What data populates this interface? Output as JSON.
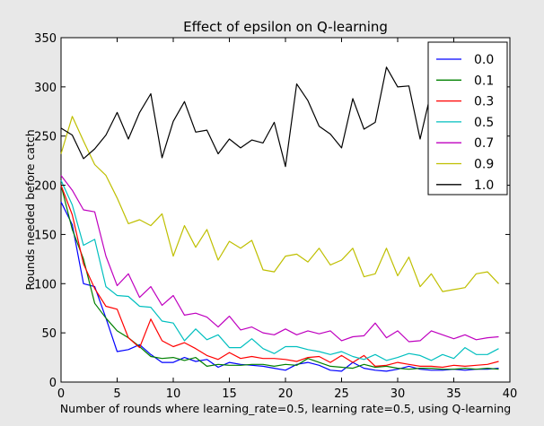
{
  "chart_data": {
    "type": "line",
    "title": "Effect of epsilon on Q-learning",
    "xlabel": "Number of rounds where learning_rate=0.5, learning rate=0.5, using Q-learning",
    "ylabel": "Rounds needed before catch",
    "xlim": [
      0,
      40
    ],
    "ylim": [
      0,
      350
    ],
    "xticks": [
      0,
      5,
      10,
      15,
      20,
      25,
      30,
      35,
      40
    ],
    "yticks": [
      0,
      50,
      100,
      150,
      200,
      250,
      300,
      350
    ],
    "grid": false,
    "legend_position": "top-right",
    "x": [
      0,
      1,
      2,
      3,
      4,
      5,
      6,
      7,
      8,
      9,
      10,
      11,
      12,
      13,
      14,
      15,
      16,
      17,
      18,
      19,
      20,
      21,
      22,
      23,
      24,
      25,
      26,
      27,
      28,
      29,
      30,
      31,
      32,
      33,
      34,
      35,
      36,
      37,
      38,
      39
    ],
    "series": [
      {
        "name": "0.0",
        "color": "#0000ff",
        "values": [
          183,
          160,
          100,
          97,
          65,
          31,
          33,
          38,
          28,
          20,
          20,
          25,
          21,
          23,
          15,
          20,
          18,
          17,
          16,
          14,
          12,
          18,
          20,
          17,
          12,
          11,
          20,
          14,
          12,
          11,
          13,
          16,
          13,
          12,
          12,
          13,
          12,
          13,
          13,
          14
        ]
      },
      {
        "name": "0.1",
        "color": "#008000",
        "values": [
          200,
          155,
          125,
          80,
          65,
          52,
          45,
          36,
          26,
          24,
          25,
          22,
          25,
          16,
          18,
          17,
          17,
          18,
          18,
          16,
          18,
          17,
          24,
          20,
          16,
          15,
          14,
          18,
          15,
          16,
          14,
          13,
          14,
          14,
          13,
          13,
          14,
          13,
          14,
          13
        ]
      },
      {
        "name": "0.3",
        "color": "#ff0000",
        "values": [
          200,
          170,
          120,
          95,
          77,
          74,
          45,
          35,
          64,
          42,
          36,
          40,
          34,
          27,
          23,
          30,
          24,
          26,
          24,
          24,
          23,
          21,
          25,
          26,
          20,
          27,
          20,
          27,
          16,
          17,
          20,
          18,
          16,
          16,
          15,
          17,
          16,
          17,
          18,
          21
        ]
      },
      {
        "name": "0.5",
        "color": "#00bfbf",
        "values": [
          205,
          180,
          139,
          145,
          97,
          88,
          87,
          77,
          76,
          62,
          60,
          42,
          54,
          43,
          48,
          35,
          35,
          44,
          34,
          29,
          36,
          36,
          33,
          31,
          28,
          31,
          26,
          23,
          28,
          22,
          25,
          29,
          27,
          22,
          28,
          24,
          35,
          28,
          28,
          34
        ]
      },
      {
        "name": "0.7",
        "color": "#bf00bf",
        "values": [
          210,
          195,
          175,
          173,
          128,
          98,
          110,
          86,
          97,
          78,
          88,
          68,
          70,
          66,
          56,
          67,
          53,
          56,
          50,
          48,
          54,
          48,
          52,
          49,
          52,
          42,
          46,
          47,
          60,
          45,
          52,
          41,
          42,
          52,
          48,
          44,
          48,
          43,
          45,
          46
        ]
      },
      {
        "name": "0.9",
        "color": "#bfbf00",
        "values": [
          232,
          270,
          245,
          221,
          210,
          187,
          161,
          165,
          159,
          171,
          128,
          159,
          137,
          155,
          124,
          143,
          136,
          144,
          114,
          112,
          128,
          130,
          122,
          136,
          119,
          124,
          136,
          107,
          110,
          136,
          108,
          127,
          97,
          110,
          92,
          94,
          96,
          110,
          112,
          100
        ]
      },
      {
        "name": "1.0",
        "color": "#000000",
        "values": [
          258,
          251,
          227,
          237,
          251,
          274,
          247,
          274,
          293,
          228,
          265,
          285,
          254,
          256,
          232,
          247,
          238,
          246,
          243,
          264,
          219,
          303,
          286,
          260,
          252,
          238,
          288,
          257,
          264,
          320,
          300,
          301,
          247,
          296,
          297,
          294,
          294,
          294,
          294,
          294
        ]
      }
    ]
  }
}
